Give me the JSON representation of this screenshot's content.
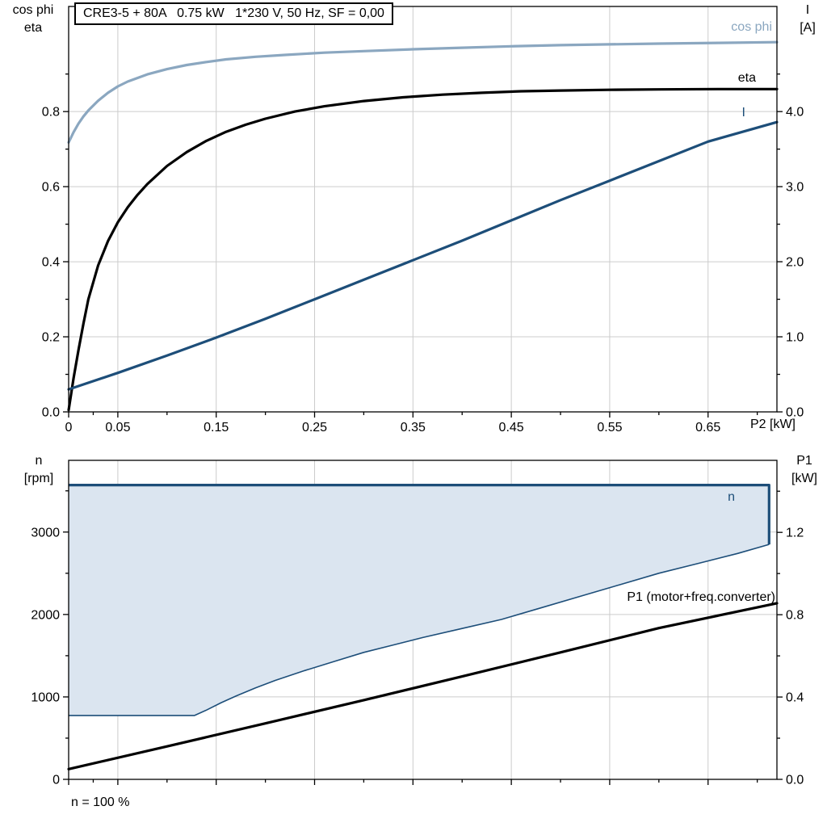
{
  "colors": {
    "grid": "#cccccc",
    "frame": "#000000",
    "cos_phi": "#8ba7c0",
    "eta": "#000000",
    "current": "#1d4e79",
    "speed": "#1d4e79",
    "speed_fill": "#dbe5f0",
    "p1": "#000000"
  },
  "chart_data": [
    {
      "type": "line",
      "title": "CRE3-5 + 80A   0.75 kW   1*230 V, 50 Hz, SF = 0,00",
      "x_axis": {
        "label": "P2 [kW]",
        "range": [
          0,
          0.72
        ],
        "tick_values": [
          0,
          0.05,
          0.15,
          0.25,
          0.35,
          0.45,
          0.55,
          0.65
        ],
        "tick_labels": [
          "0",
          "0.05",
          "0.15",
          "0.25",
          "0.35",
          "0.45",
          "0.55",
          "0.65"
        ]
      },
      "left_axis": {
        "title_lines": [
          "cos phi",
          "eta"
        ],
        "range": [
          0,
          1.08
        ],
        "tick_values": [
          0,
          0.2,
          0.4,
          0.6,
          0.8
        ],
        "tick_labels": [
          "0.0",
          "0.2",
          "0.4",
          "0.6",
          "0.8"
        ]
      },
      "right_axis": {
        "title_lines": [
          "I",
          "[A]"
        ],
        "range": [
          0,
          5.4
        ],
        "tick_values": [
          0,
          1,
          2,
          3,
          4
        ],
        "tick_labels": [
          "0.0",
          "1.0",
          "2.0",
          "3.0",
          "4.0"
        ]
      },
      "series": [
        {
          "name": "cos phi",
          "axis": "left",
          "color_key": "cos_phi",
          "width": 3.2,
          "points": [
            [
              0,
              0.718
            ],
            [
              0.005,
              0.745
            ],
            [
              0.01,
              0.768
            ],
            [
              0.015,
              0.787
            ],
            [
              0.02,
              0.803
            ],
            [
              0.03,
              0.829
            ],
            [
              0.04,
              0.85
            ],
            [
              0.05,
              0.867
            ],
            [
              0.06,
              0.88
            ],
            [
              0.08,
              0.899
            ],
            [
              0.1,
              0.913
            ],
            [
              0.12,
              0.924
            ],
            [
              0.14,
              0.932
            ],
            [
              0.16,
              0.939
            ],
            [
              0.19,
              0.946
            ],
            [
              0.22,
              0.951
            ],
            [
              0.26,
              0.957
            ],
            [
              0.3,
              0.961
            ],
            [
              0.35,
              0.966
            ],
            [
              0.4,
              0.97
            ],
            [
              0.45,
              0.974
            ],
            [
              0.5,
              0.977
            ],
            [
              0.55,
              0.979
            ],
            [
              0.6,
              0.981
            ],
            [
              0.66,
              0.983
            ],
            [
              0.72,
              0.985
            ]
          ]
        },
        {
          "name": "eta",
          "axis": "left",
          "color_key": "eta",
          "width": 3.2,
          "points": [
            [
              0,
              0.005
            ],
            [
              0.005,
              0.09
            ],
            [
              0.01,
              0.165
            ],
            [
              0.015,
              0.235
            ],
            [
              0.02,
              0.3
            ],
            [
              0.03,
              0.39
            ],
            [
              0.04,
              0.455
            ],
            [
              0.05,
              0.505
            ],
            [
              0.06,
              0.545
            ],
            [
              0.07,
              0.578
            ],
            [
              0.08,
              0.607
            ],
            [
              0.1,
              0.655
            ],
            [
              0.12,
              0.692
            ],
            [
              0.14,
              0.722
            ],
            [
              0.16,
              0.746
            ],
            [
              0.18,
              0.765
            ],
            [
              0.2,
              0.781
            ],
            [
              0.23,
              0.8
            ],
            [
              0.26,
              0.814
            ],
            [
              0.3,
              0.828
            ],
            [
              0.34,
              0.838
            ],
            [
              0.38,
              0.845
            ],
            [
              0.42,
              0.85
            ],
            [
              0.46,
              0.854
            ],
            [
              0.5,
              0.856
            ],
            [
              0.55,
              0.858
            ],
            [
              0.6,
              0.859
            ],
            [
              0.66,
              0.86
            ],
            [
              0.72,
              0.86
            ]
          ]
        },
        {
          "name": "I",
          "axis": "right",
          "color_key": "current",
          "width": 3.2,
          "points": [
            [
              0,
              0.3
            ],
            [
              0.05,
              0.52
            ],
            [
              0.1,
              0.75
            ],
            [
              0.15,
              0.99
            ],
            [
              0.2,
              1.24
            ],
            [
              0.25,
              1.5
            ],
            [
              0.3,
              1.76
            ],
            [
              0.35,
              2.02
            ],
            [
              0.4,
              2.28
            ],
            [
              0.45,
              2.55
            ],
            [
              0.5,
              2.82
            ],
            [
              0.55,
              3.08
            ],
            [
              0.6,
              3.34
            ],
            [
              0.65,
              3.6
            ],
            [
              0.72,
              3.86
            ]
          ]
        }
      ]
    },
    {
      "type": "line",
      "footnote": "n = 100 %",
      "x_axis": {
        "label": "",
        "range": [
          0,
          0.72
        ],
        "tick_values": [
          0,
          0.05,
          0.15,
          0.25,
          0.35,
          0.45,
          0.55,
          0.65
        ],
        "tick_labels": null
      },
      "left_axis": {
        "title_lines": [
          "n",
          "[rpm]"
        ],
        "range": [
          0,
          3870
        ],
        "tick_values": [
          0,
          1000,
          2000,
          3000
        ],
        "tick_labels": [
          "0",
          "1000",
          "2000",
          "3000"
        ]
      },
      "right_axis": {
        "title_lines": [
          "P1",
          "[kW]"
        ],
        "range": [
          0,
          1.55
        ],
        "tick_values": [
          0,
          0.4,
          0.8,
          1.2
        ],
        "tick_labels": [
          "0.0",
          "0.4",
          "0.8",
          "1.2"
        ]
      },
      "series": [
        {
          "name": "n",
          "axis": "left",
          "band": true,
          "color_key": "speed",
          "fill_key": "speed_fill",
          "width": 3.2,
          "lower_width": 1.6,
          "upper": [
            [
              0,
              3570
            ],
            [
              0.712,
              3570
            ],
            [
              0.712,
              2850
            ]
          ],
          "lower": [
            [
              0,
              775
            ],
            [
              0.128,
              775
            ],
            [
              0.14,
              840
            ],
            [
              0.155,
              930
            ],
            [
              0.17,
              1010
            ],
            [
              0.19,
              1110
            ],
            [
              0.21,
              1200
            ],
            [
              0.24,
              1320
            ],
            [
              0.27,
              1430
            ],
            [
              0.3,
              1540
            ],
            [
              0.33,
              1630
            ],
            [
              0.36,
              1720
            ],
            [
              0.4,
              1830
            ],
            [
              0.44,
              1940
            ],
            [
              0.48,
              2080
            ],
            [
              0.52,
              2220
            ],
            [
              0.56,
              2360
            ],
            [
              0.6,
              2500
            ],
            [
              0.64,
              2620
            ],
            [
              0.68,
              2740
            ],
            [
              0.712,
              2850
            ]
          ]
        },
        {
          "name": "P1 (motor+freq.converter)",
          "axis": "right",
          "color_key": "p1",
          "width": 3.2,
          "points": [
            [
              0,
              0.05
            ],
            [
              0.1,
              0.16
            ],
            [
              0.2,
              0.272
            ],
            [
              0.3,
              0.385
            ],
            [
              0.4,
              0.5
            ],
            [
              0.5,
              0.617
            ],
            [
              0.6,
              0.735
            ],
            [
              0.72,
              0.856
            ]
          ]
        }
      ]
    }
  ]
}
